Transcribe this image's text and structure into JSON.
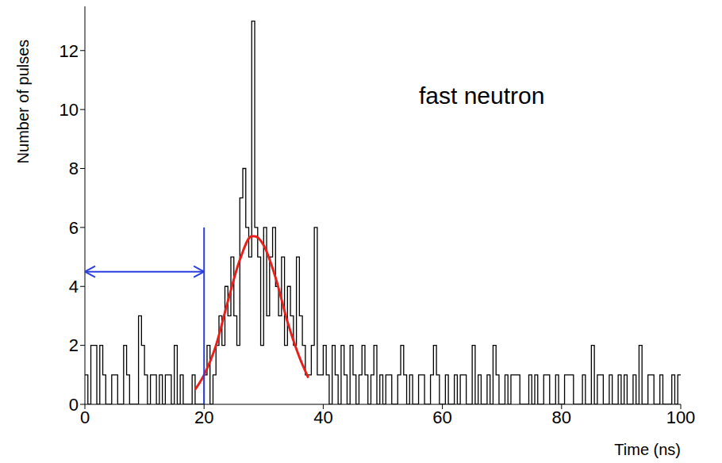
{
  "chart_data": {
    "type": "histogram",
    "annotation": "fast neutron",
    "x_label": "Time (ns)",
    "y_label": "Number of pulses",
    "color": "#000000",
    "xlim": [
      0,
      100
    ],
    "ylim": [
      0,
      13.5
    ],
    "xticks": [
      0,
      20,
      40,
      60,
      80,
      100
    ],
    "yticks": [
      0,
      2,
      4,
      6,
      8,
      10,
      12
    ],
    "bins": [
      0,
      0.5,
      1,
      1.5,
      2,
      2.5,
      3,
      3.5,
      4,
      4.5,
      5,
      5.5,
      6,
      6.5,
      7,
      7.5,
      8,
      8.5,
      9,
      9.5,
      10,
      10.5,
      11,
      11.5,
      12,
      12.5,
      13,
      13.5,
      14,
      14.5,
      15,
      15.5,
      16,
      16.5,
      17,
      17.5,
      18,
      18.5,
      19,
      19.5,
      20,
      20.5,
      21,
      21.5,
      22,
      22.5,
      23,
      23.5,
      24,
      24.5,
      25,
      25.5,
      26,
      26.5,
      27,
      27.5,
      28,
      28.5,
      29,
      29.5,
      30,
      30.5,
      31,
      31.5,
      32,
      32.5,
      33,
      33.5,
      34,
      34.5,
      35,
      35.5,
      36,
      36.5,
      37,
      37.5,
      38,
      38.5,
      39,
      39.5,
      40,
      40.5,
      41,
      41.5,
      42,
      42.5,
      43,
      43.5,
      44,
      44.5,
      45,
      45.5,
      46,
      46.5,
      47,
      47.5,
      48,
      48.5,
      49,
      49.5,
      50,
      50.5,
      51,
      51.5,
      52,
      52.5,
      53,
      53.5,
      54,
      54.5,
      55,
      55.5,
      56,
      56.5,
      57,
      57.5,
      58,
      58.5,
      59,
      59.5,
      60,
      60.5,
      61,
      61.5,
      62,
      62.5,
      63,
      63.5,
      64,
      64.5,
      65,
      65.5,
      66,
      66.5,
      67,
      67.5,
      68,
      68.5,
      69,
      69.5,
      70,
      70.5,
      71,
      71.5,
      72,
      72.5,
      73,
      73.5,
      74,
      74.5,
      75,
      75.5,
      76,
      76.5,
      77,
      77.5,
      78,
      78.5,
      79,
      79.5,
      80,
      80.5,
      81,
      81.5,
      82,
      82.5,
      83,
      83.5,
      84,
      84.5,
      85,
      85.5,
      86,
      86.5,
      87,
      87.5,
      88,
      88.5,
      89,
      89.5,
      90,
      90.5,
      91,
      91.5,
      92,
      92.5,
      93,
      93.5,
      94,
      94.5,
      95,
      95.5,
      96,
      96.5,
      97,
      97.5,
      98,
      98.5,
      99,
      99.5,
      100
    ],
    "counts": [
      1,
      0,
      2,
      2,
      0,
      2,
      1,
      0,
      0,
      1,
      1,
      0,
      0,
      2,
      1,
      0,
      0,
      0,
      3,
      2,
      1,
      0,
      1,
      1,
      0,
      1,
      0,
      1,
      1,
      0,
      2,
      0,
      1,
      0,
      0,
      0,
      1,
      0,
      0,
      0,
      1,
      2,
      0,
      1,
      2,
      3,
      2,
      4,
      3,
      5,
      3,
      2,
      7,
      8,
      6,
      5,
      13,
      6,
      5,
      2,
      6,
      3,
      5,
      6,
      4,
      3,
      5,
      2,
      4,
      3,
      2,
      5,
      3,
      2,
      1,
      1,
      2,
      6,
      1,
      1,
      2,
      1,
      0,
      2,
      1,
      0,
      2,
      1,
      0,
      2,
      1,
      0,
      1,
      2,
      1,
      0,
      1,
      2,
      0,
      1,
      0,
      1,
      1,
      0,
      0,
      1,
      2,
      1,
      0,
      1,
      0,
      0,
      1,
      1,
      0,
      0,
      1,
      2,
      1,
      0,
      0,
      1,
      0,
      0,
      1,
      0,
      1,
      1,
      0,
      0,
      2,
      0,
      1,
      0,
      0,
      1,
      0,
      2,
      1,
      0,
      0,
      1,
      0,
      1,
      1,
      1,
      0,
      0,
      0,
      1,
      0,
      1,
      0,
      0,
      1,
      1,
      0,
      0,
      1,
      0,
      0,
      1,
      1,
      1,
      0,
      0,
      0,
      1,
      0,
      0,
      2,
      0,
      1,
      1,
      0,
      0,
      1,
      0,
      0,
      1,
      0,
      1,
      0,
      0,
      1,
      0,
      2,
      0,
      0,
      1,
      1,
      0,
      0,
      1,
      0,
      0,
      0,
      1,
      0,
      1
    ],
    "fit": {
      "color": "#e8201c",
      "x": [
        18.5,
        20,
        22,
        24,
        26,
        28,
        28.5,
        30,
        32,
        34,
        36,
        37.5
      ],
      "y": [
        0.5,
        1.0,
        2.0,
        3.5,
        4.9,
        5.7,
        5.7,
        5.4,
        4.3,
        2.8,
        1.6,
        0.9
      ]
    },
    "arrow": {
      "color": "#2a3fe0",
      "x": [
        0,
        20
      ],
      "y": 4.5
    },
    "cut": {
      "color": "#2a3fe0",
      "x": 20,
      "y": [
        0,
        6
      ]
    }
  }
}
